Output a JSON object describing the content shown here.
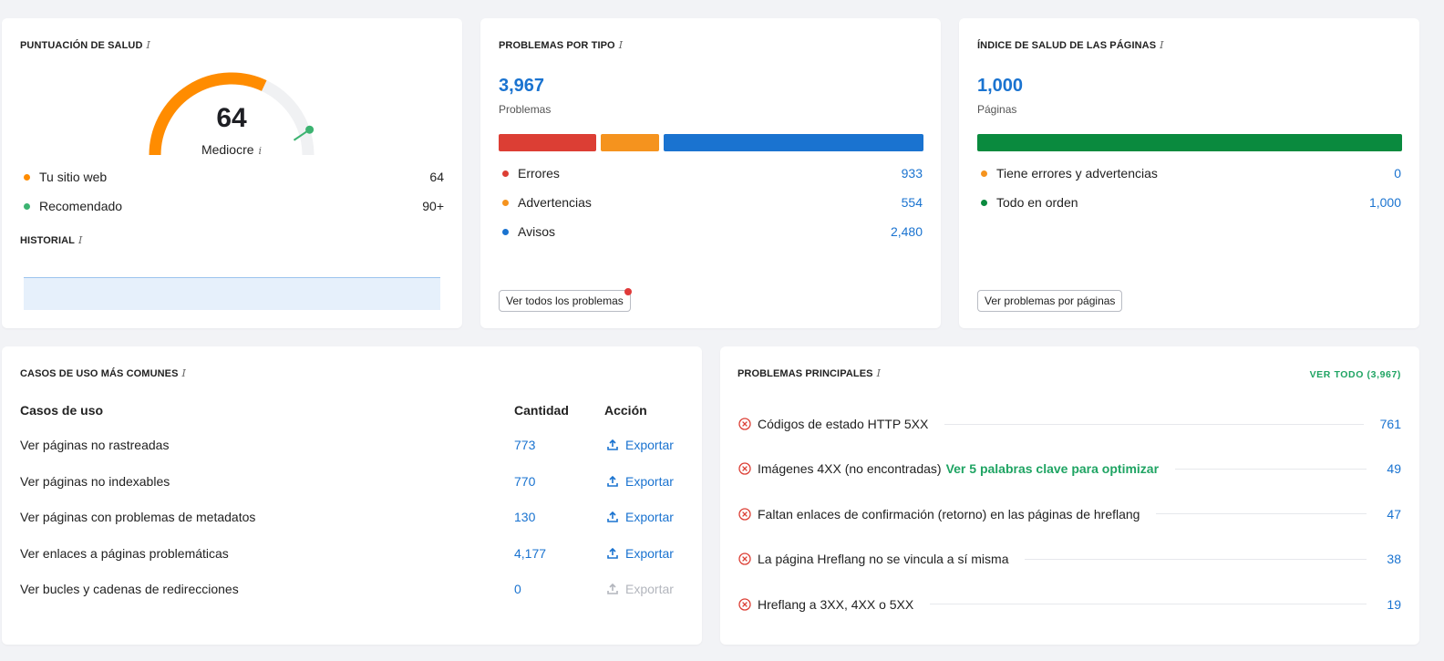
{
  "health_score": {
    "title": "PUNTUACIÓN DE SALUD",
    "info": "i",
    "score": "64",
    "score_value": 64,
    "rating": "Mediocre",
    "legend": [
      {
        "label": "Tu sitio web",
        "value": "64",
        "color": "#ff8c00"
      },
      {
        "label": "Recomendado",
        "value": "90+",
        "color": "#3cb371"
      }
    ],
    "history_title": "HISTORIAL",
    "colors": {
      "gauge_fill": "#ff8c00",
      "gauge_track": "#f0f1f3",
      "recommended": "#3cb371",
      "history_fill": "#e6f0fb",
      "history_line": "#9cc4ee"
    }
  },
  "problems_by_type": {
    "title": "PROBLEMAS POR TIPO",
    "info": "i",
    "total": "3,967",
    "total_label": "Problemas",
    "legend": [
      {
        "label": "Errores",
        "value": "933",
        "amount": 933,
        "color": "#dc3e34"
      },
      {
        "label": "Advertencias",
        "value": "554",
        "amount": 554,
        "color": "#f5931e"
      },
      {
        "label": "Avisos",
        "value": "2,480",
        "amount": 2480,
        "color": "#1a73d0"
      }
    ],
    "button_label": "Ver todos los problemas",
    "badge_color": "#e03a3a"
  },
  "page_health": {
    "title": "ÍNDICE DE SALUD DE LAS PÁGINAS",
    "info": "i",
    "total": "1,000",
    "total_label": "Páginas",
    "legend": [
      {
        "label": "Tiene errores y advertencias",
        "value": "0",
        "amount": 0,
        "color": "#f5931e"
      },
      {
        "label": "Todo en orden",
        "value": "1,000",
        "amount": 1000,
        "color": "#0a8a3e"
      }
    ],
    "button_label": "Ver problemas por páginas"
  },
  "use_cases": {
    "title": "CASOS DE USO MÁS COMUNES",
    "info": "i",
    "columns": [
      "Casos de uso",
      "Cantidad",
      "Acción"
    ],
    "rows": [
      {
        "label": "Ver páginas no rastreadas",
        "count": "773",
        "action": "Exportar",
        "enabled": true
      },
      {
        "label": "Ver páginas no indexables",
        "count": "770",
        "action": "Exportar",
        "enabled": true
      },
      {
        "label": "Ver páginas con problemas de metadatos",
        "count": "130",
        "action": "Exportar",
        "enabled": true
      },
      {
        "label": "Ver enlaces a páginas problemáticas",
        "count": "4,177",
        "action": "Exportar",
        "enabled": true
      },
      {
        "label": "Ver bucles y cadenas de redirecciones",
        "count": "0",
        "action": "Exportar",
        "enabled": false
      }
    ]
  },
  "top_issues": {
    "title": "PROBLEMAS PRINCIPALES",
    "info": "i",
    "see_all": "VER TODO (3,967)",
    "rows": [
      {
        "text": "Códigos de estado HTTP 5XX",
        "link": "",
        "value": "761"
      },
      {
        "text": "Imágenes 4XX (no encontradas)",
        "link": "Ver 5 palabras clave para optimizar",
        "value": "49"
      },
      {
        "text": "Faltan enlaces de confirmación (retorno) en las páginas de hreflang",
        "link": "",
        "value": "47"
      },
      {
        "text": "La página Hreflang no se vincula a sí misma",
        "link": "",
        "value": "38"
      },
      {
        "text": "Hreflang a 3XX, 4XX o 5XX",
        "link": "",
        "value": "19"
      }
    ],
    "icon": "error-circle-icon",
    "icon_color": "#dc3e34"
  }
}
